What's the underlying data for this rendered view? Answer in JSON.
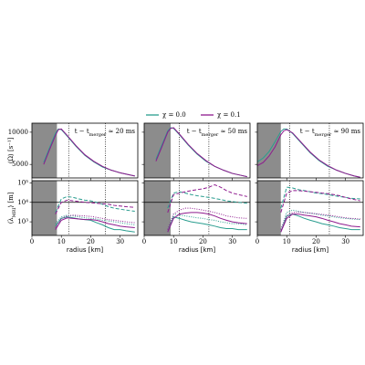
{
  "legend": [
    {
      "label": "χ = 0.0",
      "color": "#2a9d8f"
    },
    {
      "label": "χ = 0.1",
      "color": "#8e1a8e"
    }
  ],
  "chart_data": [
    {
      "type": "line",
      "ylabel": "⟨Ω⟩ [s⁻¹]",
      "annotation": [
        "t − t",
        "merger",
        " ≈ 20 ms"
      ],
      "x": [
        0,
        2,
        4,
        6,
        8,
        9,
        10,
        12,
        15,
        18,
        21,
        24,
        27,
        30,
        33,
        35
      ],
      "xlim": [
        0,
        36
      ],
      "xticks": [
        0,
        10,
        20,
        30
      ],
      "show_xtick_labels": false,
      "ylim": [
        2900,
        11400
      ],
      "yticks": [
        5000,
        10000
      ],
      "show_ytick_labels": true,
      "shade": 8.5,
      "vlines": [
        12.5,
        25
      ],
      "series": [
        {
          "color": "#2a9d8f",
          "dash": "solid",
          "values": [
            null,
            null,
            5300,
            7600,
            9800,
            10500,
            10400,
            9400,
            7800,
            6400,
            5400,
            4600,
            4100,
            3700,
            3400,
            3200
          ]
        },
        {
          "color": "#8e1a8e",
          "dash": "solid",
          "values": [
            null,
            null,
            5000,
            7300,
            9500,
            10400,
            10500,
            9500,
            7900,
            6500,
            5500,
            4700,
            4100,
            3700,
            3400,
            3200
          ]
        }
      ]
    },
    {
      "type": "line",
      "annotation": [
        "t − t",
        "merger",
        " ≈ 50 ms"
      ],
      "x": [
        0,
        2,
        4,
        6,
        8,
        9,
        10,
        12,
        15,
        18,
        21,
        24,
        27,
        30,
        33,
        35
      ],
      "xlim": [
        0,
        36
      ],
      "xticks": [
        0,
        10,
        20,
        30
      ],
      "show_xtick_labels": false,
      "ylim": [
        2900,
        11400
      ],
      "yticks": [
        5000,
        10000
      ],
      "show_ytick_labels": false,
      "shade": 9,
      "vlines": [
        12,
        22
      ],
      "series": [
        {
          "color": "#2a9d8f",
          "dash": "solid",
          "values": [
            null,
            null,
            5800,
            8000,
            10200,
            10700,
            10600,
            9600,
            8000,
            6600,
            5500,
            4700,
            4100,
            3600,
            3300,
            3100
          ]
        },
        {
          "color": "#8e1a8e",
          "dash": "solid",
          "values": [
            null,
            null,
            5500,
            7700,
            10000,
            10600,
            10700,
            9700,
            8100,
            6700,
            5600,
            4700,
            4100,
            3600,
            3300,
            3100
          ]
        }
      ]
    },
    {
      "type": "line",
      "annotation": [
        "t − t",
        "merger",
        " ≈ 90 ms"
      ],
      "x": [
        0,
        2,
        4,
        6,
        8,
        9,
        10,
        12,
        15,
        18,
        21,
        24,
        27,
        30,
        33,
        35
      ],
      "xlim": [
        0,
        36
      ],
      "xticks": [
        0,
        10,
        20,
        30
      ],
      "show_xtick_labels": false,
      "ylim": [
        2900,
        11400
      ],
      "yticks": [
        5000,
        10000
      ],
      "show_ytick_labels": false,
      "shade": 8,
      "vlines": [
        11,
        24.5
      ],
      "series": [
        {
          "color": "#2a9d8f",
          "dash": "solid",
          "values": [
            5400,
            6000,
            7000,
            8500,
            10100,
            10500,
            10500,
            9800,
            8300,
            6800,
            5600,
            4700,
            4100,
            3600,
            3200,
            3000
          ]
        },
        {
          "color": "#8e1a8e",
          "dash": "solid",
          "values": [
            4800,
            5300,
            6300,
            7700,
            9600,
            10200,
            10400,
            9900,
            8400,
            6900,
            5700,
            4800,
            4100,
            3600,
            3200,
            3000
          ]
        }
      ]
    },
    {
      "type": "line",
      "ylabel": [
        "⟨λ",
        "MRI",
        "⟩ [m]"
      ],
      "xlabel": "radius [km]",
      "log": true,
      "x": [
        8,
        10,
        12,
        14,
        16,
        18,
        20,
        22,
        24,
        26,
        28,
        30,
        32,
        35
      ],
      "xlim": [
        0,
        36
      ],
      "xticks": [
        0,
        10,
        20,
        30
      ],
      "show_xtick_labels": true,
      "ylim": [
        200,
        130000
      ],
      "yticks": [
        {
          "value": 1000,
          "label": "10³"
        },
        {
          "value": 10000,
          "label": "10⁴"
        },
        {
          "value": 100000,
          "label": "10⁵"
        }
      ],
      "show_ytick_labels": true,
      "shade": 8.5,
      "vlines": [
        12.5,
        25
      ],
      "hline": 10000,
      "series": [
        {
          "color": "#2a9d8f",
          "dash": "solid",
          "values": [
            600,
            1500,
            1800,
            1600,
            1400,
            1300,
            1200,
            900,
            700,
            500,
            400,
            400,
            350,
            300
          ]
        },
        {
          "color": "#2a9d8f",
          "dash": "dashed",
          "values": [
            3000,
            15000,
            20000,
            18000,
            15000,
            13000,
            12000,
            10000,
            8000,
            6000,
            5000,
            4500,
            4000,
            3500
          ]
        },
        {
          "color": "#2a9d8f",
          "dash": "dotted",
          "values": [
            800,
            1800,
            2200,
            2000,
            1800,
            1600,
            1500,
            1400,
            1200,
            1100,
            1000,
            900,
            800,
            700
          ]
        },
        {
          "color": "#8e1a8e",
          "dash": "solid",
          "values": [
            400,
            1200,
            1600,
            1500,
            1400,
            1300,
            1300,
            1200,
            1000,
            800,
            700,
            600,
            550,
            500
          ]
        },
        {
          "color": "#8e1a8e",
          "dash": "dashed",
          "values": [
            2500,
            10000,
            13000,
            12000,
            11000,
            10000,
            9500,
            9000,
            8500,
            8000,
            7000,
            6500,
            6000,
            5500
          ]
        },
        {
          "color": "#8e1a8e",
          "dash": "dotted",
          "values": [
            500,
            1500,
            2000,
            2200,
            2100,
            2000,
            1900,
            1700,
            1500,
            1300,
            1200,
            1100,
            1000,
            900
          ]
        }
      ]
    },
    {
      "type": "line",
      "xlabel": "radius [km]",
      "log": true,
      "x": [
        8,
        10,
        12,
        14,
        16,
        18,
        20,
        22,
        24,
        26,
        28,
        30,
        32,
        35
      ],
      "xlim": [
        0,
        36
      ],
      "xticks": [
        0,
        10,
        20,
        30
      ],
      "show_xtick_labels": true,
      "ylim": [
        200,
        130000
      ],
      "yticks": [
        1000,
        10000,
        100000
      ],
      "show_ytick_labels": false,
      "shade": 9,
      "vlines": [
        12,
        22
      ],
      "hline": 10000,
      "series": [
        {
          "color": "#2a9d8f",
          "dash": "solid",
          "values": [
            300,
            1800,
            1500,
            1200,
            1000,
            900,
            800,
            700,
            600,
            500,
            450,
            450,
            400,
            400
          ]
        },
        {
          "color": "#2a9d8f",
          "dash": "dashed",
          "values": [
            5000,
            30000,
            35000,
            30000,
            25000,
            22000,
            20000,
            18000,
            16000,
            14000,
            12000,
            11000,
            10000,
            9000
          ]
        },
        {
          "color": "#2a9d8f",
          "dash": "dotted",
          "values": [
            400,
            2500,
            2200,
            2000,
            1800,
            1600,
            1500,
            1300,
            1200,
            1000,
            900,
            800,
            800,
            700
          ]
        },
        {
          "color": "#8e1a8e",
          "dash": "solid",
          "values": [
            300,
            1500,
            2500,
            2800,
            3000,
            3000,
            2800,
            2500,
            2000,
            1500,
            1200,
            1000,
            900,
            800
          ]
        },
        {
          "color": "#8e1a8e",
          "dash": "dashed",
          "values": [
            3000,
            25000,
            30000,
            35000,
            40000,
            45000,
            50000,
            60000,
            80000,
            60000,
            40000,
            30000,
            25000,
            20000
          ]
        },
        {
          "color": "#8e1a8e",
          "dash": "dotted",
          "values": [
            400,
            2500,
            4000,
            5000,
            5000,
            4500,
            4000,
            3500,
            3000,
            2500,
            2000,
            1800,
            1600,
            1500
          ]
        }
      ]
    },
    {
      "type": "line",
      "xlabel": "radius [km]",
      "log": true,
      "x": [
        8,
        10,
        12,
        14,
        16,
        18,
        20,
        22,
        24,
        26,
        28,
        30,
        32,
        35
      ],
      "xlim": [
        0,
        36
      ],
      "xticks": [
        0,
        10,
        20,
        30
      ],
      "show_xtick_labels": true,
      "ylim": [
        200,
        130000
      ],
      "yticks": [
        1000,
        10000,
        100000
      ],
      "show_ytick_labels": false,
      "shade": 8,
      "vlines": [
        11,
        24.5
      ],
      "hline": 10000,
      "series": [
        {
          "color": "#2a9d8f",
          "dash": "solid",
          "values": [
            300,
            2000,
            2500,
            2000,
            1500,
            1200,
            1000,
            800,
            700,
            600,
            500,
            450,
            400,
            400
          ]
        },
        {
          "color": "#2a9d8f",
          "dash": "dashed",
          "values": [
            5000,
            60000,
            55000,
            45000,
            40000,
            35000,
            30000,
            28000,
            25000,
            22000,
            20000,
            18000,
            16000,
            15000
          ]
        },
        {
          "color": "#2a9d8f",
          "dash": "dotted",
          "values": [
            400,
            3000,
            4000,
            3500,
            3000,
            2800,
            2500,
            2200,
            2000,
            1800,
            1600,
            1500,
            1400,
            1300
          ]
        },
        {
          "color": "#8e1a8e",
          "dash": "solid",
          "values": [
            300,
            1500,
            2500,
            2500,
            2200,
            2000,
            1800,
            1500,
            1200,
            1000,
            800,
            700,
            600,
            550
          ]
        },
        {
          "color": "#8e1a8e",
          "dash": "dashed",
          "values": [
            3000,
            30000,
            40000,
            40000,
            38000,
            35000,
            33000,
            30000,
            28000,
            25000,
            22000,
            18000,
            15000,
            12000
          ]
        },
        {
          "color": "#8e1a8e",
          "dash": "dotted",
          "values": [
            400,
            2000,
            3000,
            3200,
            3000,
            2800,
            2600,
            2400,
            2200,
            2000,
            1800,
            1600,
            1500,
            1400
          ]
        }
      ]
    }
  ]
}
